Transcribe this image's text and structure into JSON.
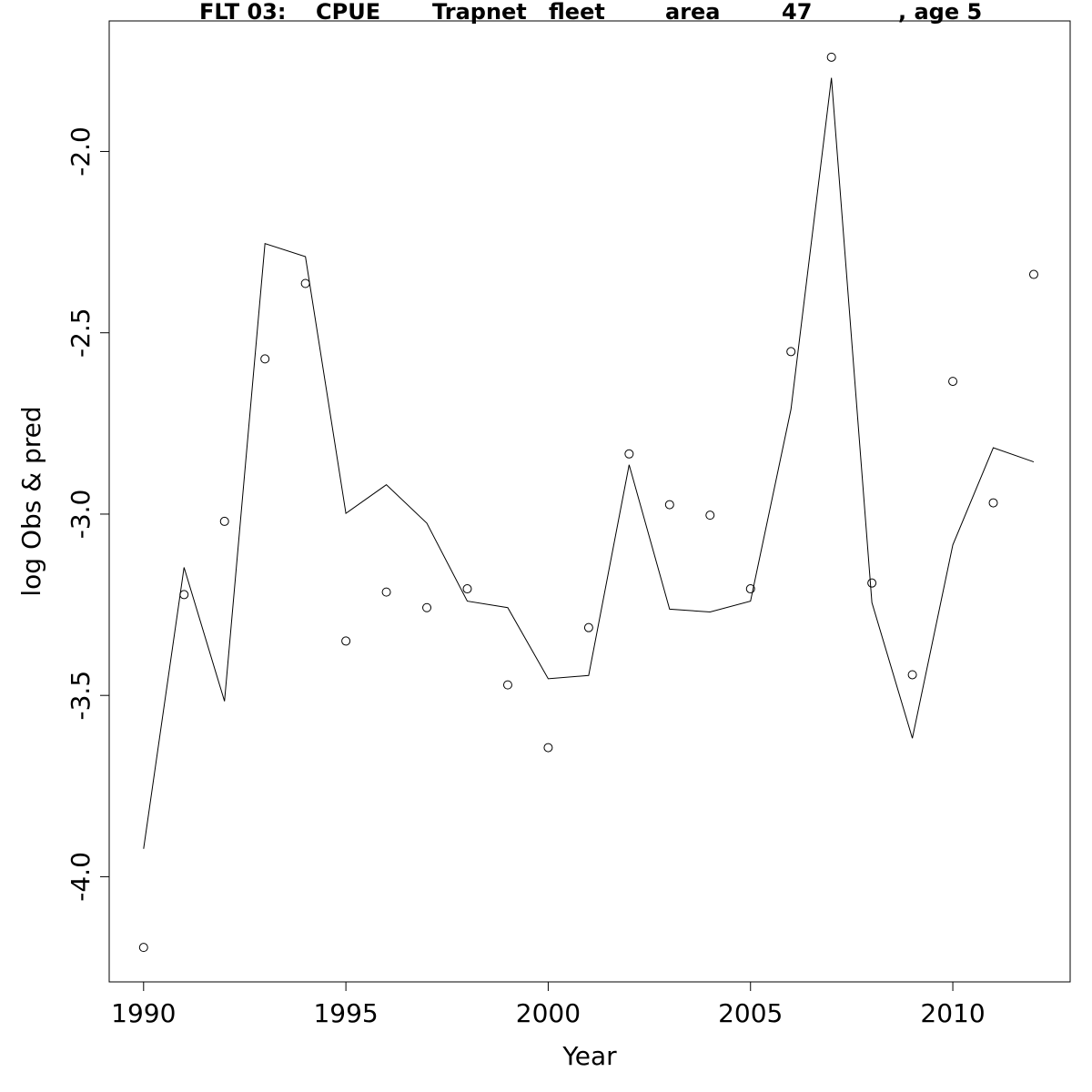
{
  "chart_data": {
    "type": "line",
    "title_parts": [
      "FLT 03:",
      "CPUE",
      "Trapnet",
      "fleet",
      "area",
      "47",
      ", age 5"
    ],
    "xlabel": "Year",
    "ylabel": "log Obs & pred",
    "xlim": [
      1989.15,
      2012.9
    ],
    "ylim": [
      -4.29,
      -1.64
    ],
    "x_ticks": [
      1990,
      1995,
      2000,
      2005,
      2010
    ],
    "y_ticks": [
      -4.0,
      -3.5,
      -3.0,
      -2.5,
      -2.0
    ],
    "x": [
      1990,
      1991,
      1992,
      1993,
      1994,
      1995,
      1996,
      1997,
      1998,
      1999,
      2000,
      2001,
      2002,
      2003,
      2004,
      2005,
      2006,
      2007,
      2008,
      2009,
      2010,
      2011,
      2012
    ],
    "series": [
      {
        "kind": "points",
        "values": [
          -4.195,
          -3.222,
          -3.02,
          -2.572,
          -2.364,
          -3.35,
          -3.215,
          -3.258,
          -3.206,
          -3.471,
          -3.644,
          -3.313,
          -2.834,
          -2.974,
          -3.003,
          -3.206,
          -2.552,
          -1.74,
          -3.19,
          -3.443,
          -2.634,
          -2.969,
          -2.339
        ]
      },
      {
        "kind": "line",
        "values": [
          -3.923,
          -3.147,
          -3.516,
          -2.254,
          -2.29,
          -2.998,
          -2.919,
          -3.025,
          -3.24,
          -3.258,
          -3.454,
          -3.445,
          -2.864,
          -3.262,
          -3.27,
          -3.24,
          -2.711,
          -1.797,
          -3.244,
          -3.618,
          -3.085,
          -2.817,
          -2.856
        ]
      }
    ]
  }
}
